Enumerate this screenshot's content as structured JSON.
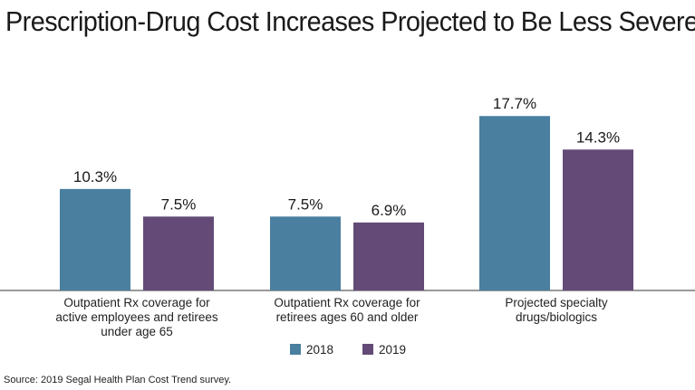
{
  "title": "Prescription-Drug Cost Increases Projected to Be Less Severe",
  "source": "Source: 2019 Segal Health Plan Cost Trend survey.",
  "chart_data": {
    "type": "bar",
    "categories": [
      [
        "Outpatient Rx coverage for",
        "active employees and retirees",
        "under age 65"
      ],
      [
        "Outpatient Rx coverage for",
        "retirees ages 60 and older"
      ],
      [
        "Projected specialty",
        "drugs/biologics"
      ]
    ],
    "series": [
      {
        "name": "2018",
        "color": "#4a7fa0",
        "values": [
          10.3,
          7.5,
          17.7
        ],
        "labels": [
          "10.3%",
          "7.5%",
          "17.7%"
        ]
      },
      {
        "name": "2019",
        "color": "#644b77",
        "values": [
          7.5,
          6.9,
          14.3
        ],
        "labels": [
          "7.5%",
          "6.9%",
          "14.3%"
        ]
      }
    ],
    "ylim": [
      0,
      20
    ],
    "grid": false,
    "legend": "bottom-center",
    "xlabel": "",
    "ylabel": ""
  }
}
